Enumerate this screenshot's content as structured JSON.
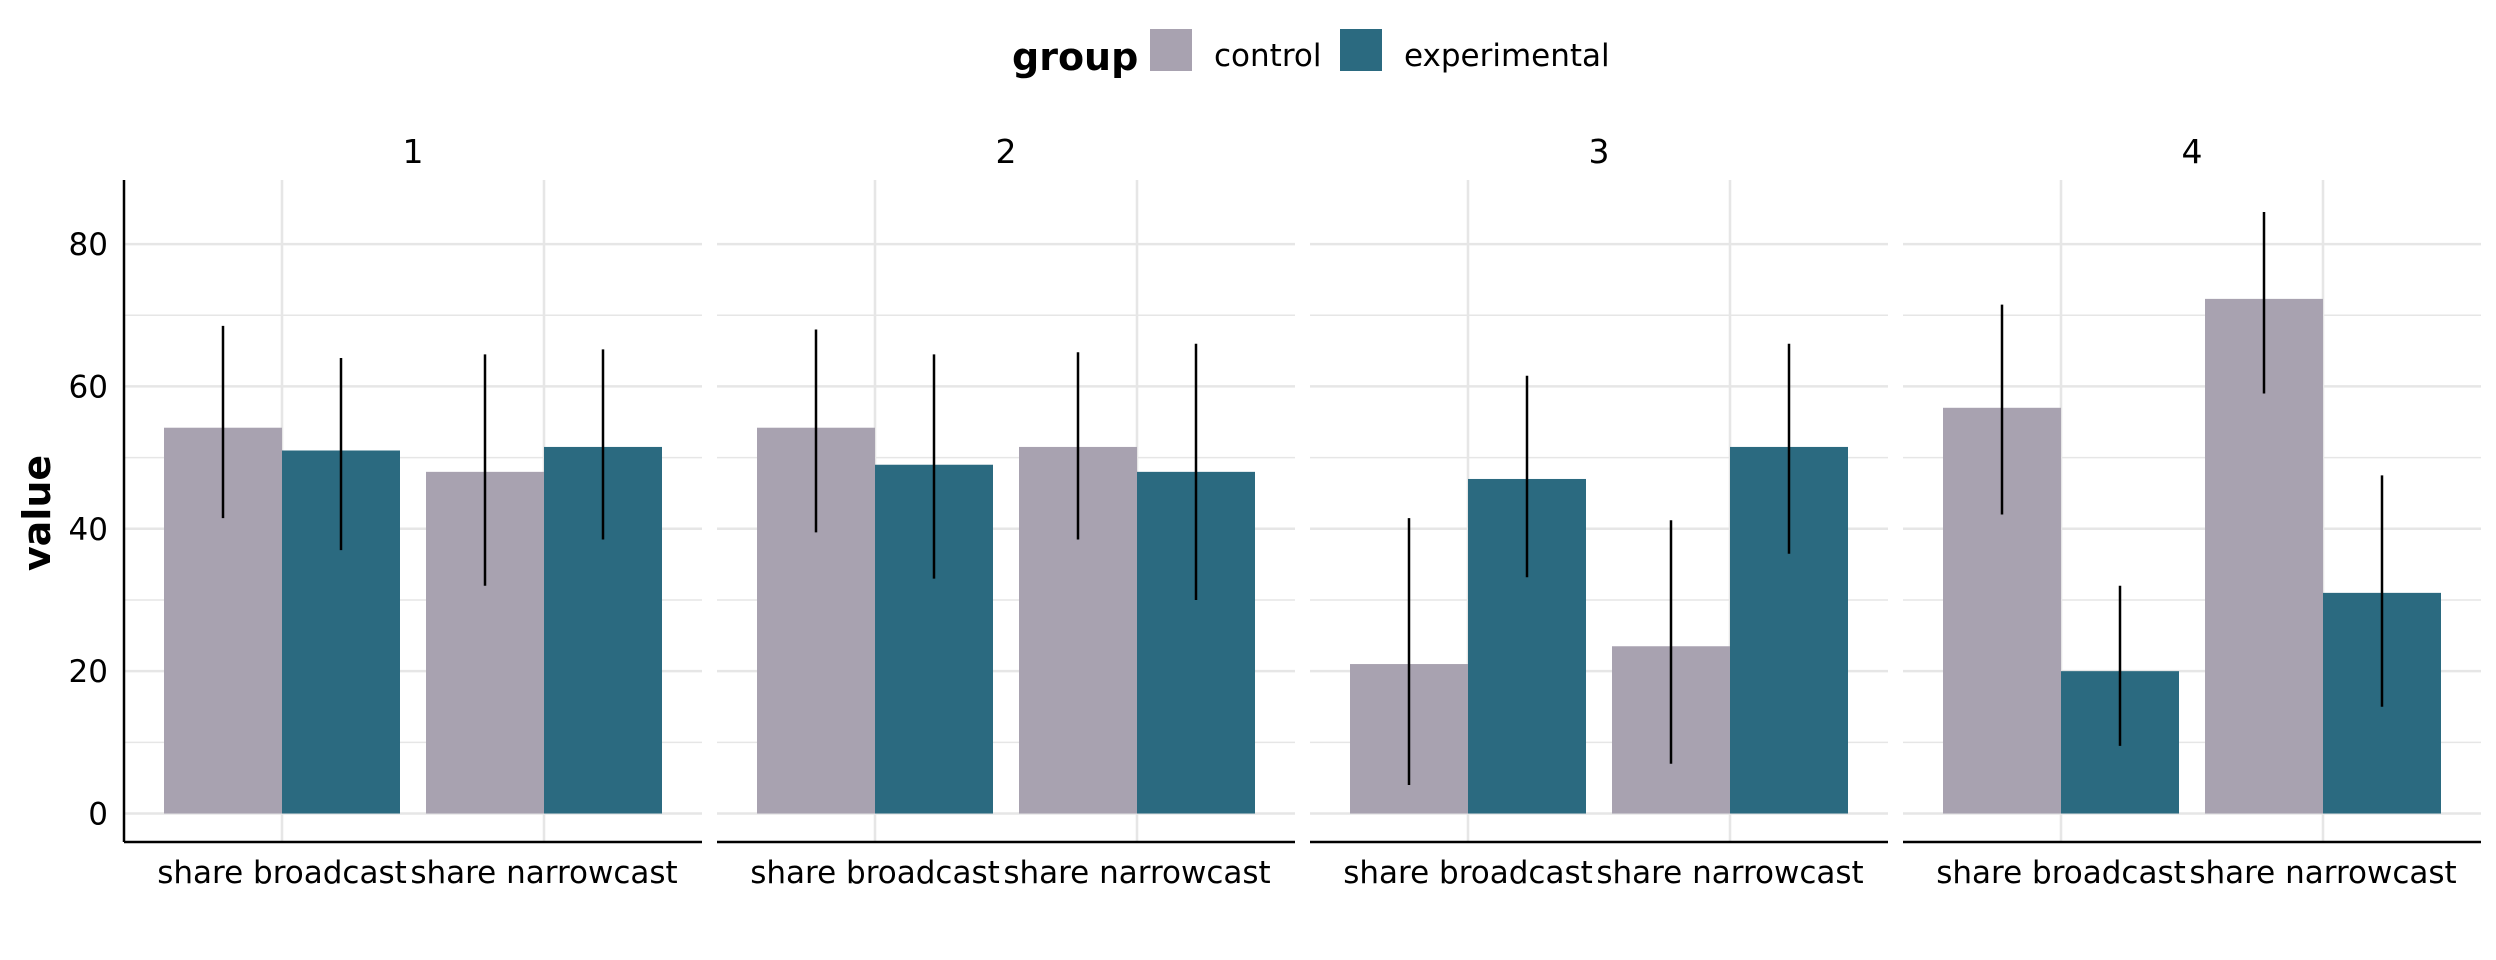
{
  "chart_data": {
    "type": "bar",
    "facet_by": "wave",
    "panels": [
      {
        "label": "1",
        "categories": [
          "share broadcast",
          "share narrowcast"
        ],
        "series": [
          {
            "name": "control",
            "values": [
              54.2,
              48.0
            ],
            "error_low": [
              41.5,
              32.0
            ],
            "error_high": [
              68.5,
              64.5
            ]
          },
          {
            "name": "experimental",
            "values": [
              51.0,
              51.5
            ],
            "error_low": [
              37.0,
              38.5
            ],
            "error_high": [
              64.0,
              65.2
            ]
          }
        ]
      },
      {
        "label": "2",
        "categories": [
          "share broadcast",
          "share narrowcast"
        ],
        "series": [
          {
            "name": "control",
            "values": [
              54.2,
              51.5
            ],
            "error_low": [
              39.5,
              38.5
            ],
            "error_high": [
              68.0,
              64.8
            ]
          },
          {
            "name": "experimental",
            "values": [
              49.0,
              48.0
            ],
            "error_low": [
              33.0,
              30.0
            ],
            "error_high": [
              64.5,
              66.0
            ]
          }
        ]
      },
      {
        "label": "3",
        "categories": [
          "share broadcast",
          "share narrowcast"
        ],
        "series": [
          {
            "name": "control",
            "values": [
              21.0,
              23.5
            ],
            "error_low": [
              4.0,
              7.0
            ],
            "error_high": [
              41.5,
              41.2
            ]
          },
          {
            "name": "experimental",
            "values": [
              47.0,
              51.5
            ],
            "error_low": [
              33.2,
              36.5
            ],
            "error_high": [
              61.5,
              66.0
            ]
          }
        ]
      },
      {
        "label": "4",
        "categories": [
          "share broadcast",
          "share narrowcast"
        ],
        "series": [
          {
            "name": "control",
            "values": [
              57.0,
              72.3
            ],
            "error_low": [
              42.0,
              59.0
            ],
            "error_high": [
              71.5,
              84.5
            ]
          },
          {
            "name": "experimental",
            "values": [
              20.0,
              31.0
            ],
            "error_low": [
              9.5,
              15.0
            ],
            "error_high": [
              32.0,
              47.5
            ]
          }
        ]
      }
    ],
    "legend": {
      "title": "group",
      "entries": [
        "control",
        "experimental"
      ],
      "position": "top"
    },
    "ylabel": "value",
    "xlabel": "",
    "ylim": [
      -4,
      89
    ],
    "yticks": [
      0,
      20,
      40,
      60,
      80
    ],
    "grid": true,
    "colors": {
      "control": "#a8a2b0",
      "experimental": "#2b6a80",
      "error_bar": "#000000",
      "grid": "#e6e6e6",
      "axis": "#000000"
    }
  }
}
